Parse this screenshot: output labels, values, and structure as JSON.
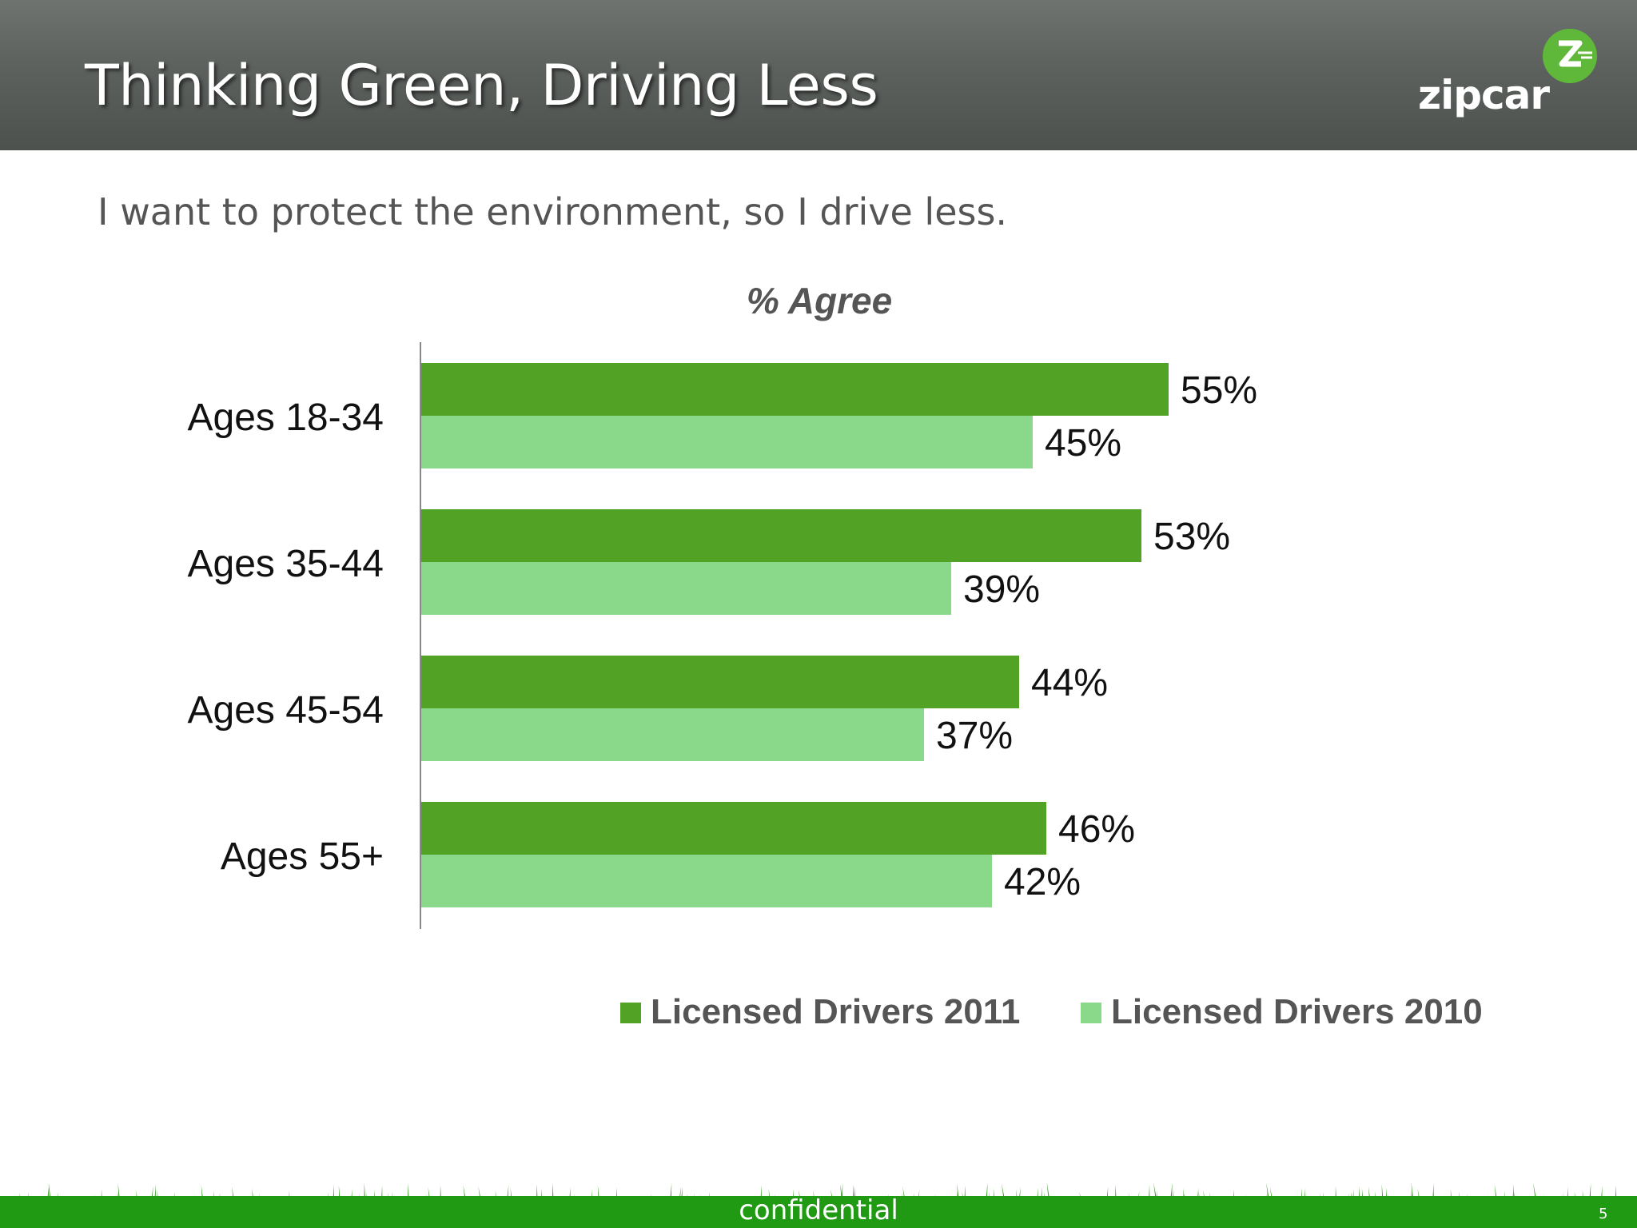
{
  "slide": {
    "title": "Thinking Green, Driving Less",
    "subtitle": "I want to protect the environment, so I drive less.",
    "logo_text": "zipcar",
    "logo_icon": "zipcar-z-badge-icon",
    "footer_text": "confidential",
    "page_number": "5"
  },
  "colors": {
    "header": "#5d615e",
    "series_2011": "#52a325",
    "series_2010": "#8ad98a",
    "footer": "#1f9a12"
  },
  "chart_data": {
    "type": "bar",
    "orientation": "horizontal",
    "title": "% Agree",
    "xlabel": "",
    "ylabel": "",
    "xlim": [
      0,
      80
    ],
    "grid": false,
    "legend_position": "bottom",
    "categories": [
      "Ages 18-34",
      "Ages 35-44",
      "Ages 45-54",
      "Ages 55+"
    ],
    "series": [
      {
        "name": "Licensed Drivers 2011",
        "values": [
          55,
          53,
          44,
          46
        ],
        "labels": [
          "55%",
          "53%",
          "44%",
          "46%"
        ]
      },
      {
        "name": "Licensed Drivers 2010",
        "values": [
          45,
          39,
          37,
          42
        ],
        "labels": [
          "45%",
          "39%",
          "37%",
          "42%"
        ]
      }
    ]
  }
}
